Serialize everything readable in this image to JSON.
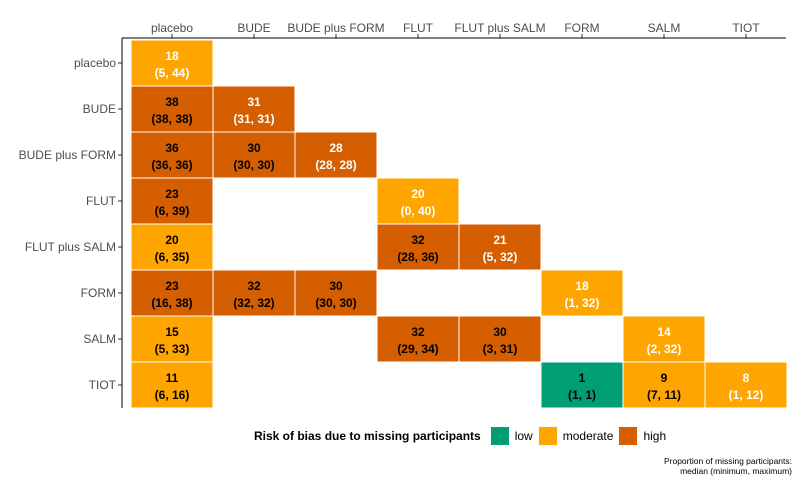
{
  "chart_data": {
    "type": "heatmap",
    "columns": [
      "placebo",
      "BUDE",
      "BUDE plus FORM",
      "FLUT",
      "FLUT plus SALM",
      "FORM",
      "SALM",
      "TIOT"
    ],
    "rows": [
      "placebo",
      "BUDE",
      "BUDE plus FORM",
      "FLUT",
      "FLUT plus SALM",
      "FORM",
      "SALM",
      "TIOT"
    ],
    "cells": [
      {
        "row": "placebo",
        "col": "placebo",
        "median": "18",
        "range": "(5, 44)",
        "risk": "moderate"
      },
      {
        "row": "BUDE",
        "col": "placebo",
        "median": "38",
        "range": "(38, 38)",
        "risk": "high"
      },
      {
        "row": "BUDE",
        "col": "BUDE",
        "median": "31",
        "range": "(31, 31)",
        "risk": "high"
      },
      {
        "row": "BUDE plus FORM",
        "col": "placebo",
        "median": "36",
        "range": "(36, 36)",
        "risk": "high"
      },
      {
        "row": "BUDE plus FORM",
        "col": "BUDE",
        "median": "30",
        "range": "(30, 30)",
        "risk": "high"
      },
      {
        "row": "BUDE plus FORM",
        "col": "BUDE plus FORM",
        "median": "28",
        "range": "(28, 28)",
        "risk": "high"
      },
      {
        "row": "FLUT",
        "col": "placebo",
        "median": "23",
        "range": "(6, 39)",
        "risk": "high"
      },
      {
        "row": "FLUT",
        "col": "FLUT",
        "median": "20",
        "range": "(0, 40)",
        "risk": "moderate"
      },
      {
        "row": "FLUT plus SALM",
        "col": "placebo",
        "median": "20",
        "range": "(6, 35)",
        "risk": "moderate"
      },
      {
        "row": "FLUT plus SALM",
        "col": "FLUT",
        "median": "32",
        "range": "(28, 36)",
        "risk": "high"
      },
      {
        "row": "FLUT plus SALM",
        "col": "FLUT plus SALM",
        "median": "21",
        "range": "(5, 32)",
        "risk": "high"
      },
      {
        "row": "FORM",
        "col": "placebo",
        "median": "23",
        "range": "(16, 38)",
        "risk": "high"
      },
      {
        "row": "FORM",
        "col": "BUDE",
        "median": "32",
        "range": "(32, 32)",
        "risk": "high"
      },
      {
        "row": "FORM",
        "col": "BUDE plus FORM",
        "median": "30",
        "range": "(30, 30)",
        "risk": "high"
      },
      {
        "row": "FORM",
        "col": "FORM",
        "median": "18",
        "range": "(1, 32)",
        "risk": "moderate"
      },
      {
        "row": "SALM",
        "col": "placebo",
        "median": "15",
        "range": "(5, 33)",
        "risk": "moderate"
      },
      {
        "row": "SALM",
        "col": "FLUT",
        "median": "32",
        "range": "(29, 34)",
        "risk": "high"
      },
      {
        "row": "SALM",
        "col": "FLUT plus SALM",
        "median": "30",
        "range": "(3, 31)",
        "risk": "high"
      },
      {
        "row": "SALM",
        "col": "SALM",
        "median": "14",
        "range": "(2, 32)",
        "risk": "moderate"
      },
      {
        "row": "TIOT",
        "col": "placebo",
        "median": "11",
        "range": "(6, 16)",
        "risk": "moderate"
      },
      {
        "row": "TIOT",
        "col": "FORM",
        "median": "1",
        "range": "(1, 1)",
        "risk": "low"
      },
      {
        "row": "TIOT",
        "col": "SALM",
        "median": "9",
        "range": "(7, 11)",
        "risk": "moderate"
      },
      {
        "row": "TIOT",
        "col": "TIOT",
        "median": "8",
        "range": "(1, 12)",
        "risk": "moderate"
      }
    ],
    "legend": {
      "title": "Risk of bias due to missing participants",
      "placement": "bottom",
      "items": [
        {
          "key": "low",
          "label": "low",
          "color": "#009e73"
        },
        {
          "key": "moderate",
          "label": "moderate",
          "color": "#ffa500"
        },
        {
          "key": "high",
          "label": "high",
          "color": "#d55e00"
        }
      ]
    },
    "footnote": [
      "Proportion of missing participants:",
      "median (minimum, maximum)"
    ],
    "text_colors": {
      "diagonal": "#ffffff",
      "off_diagonal": "#000000"
    },
    "grid": false
  }
}
